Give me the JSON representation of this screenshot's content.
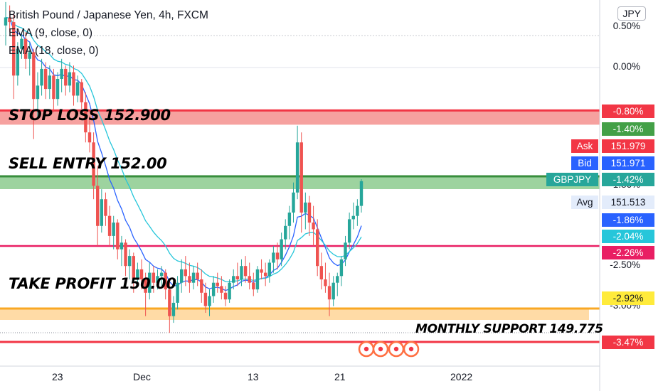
{
  "header": {
    "title": "British Pound / Japanese Yen, 4h, FXCM",
    "indicators": [
      "EMA (9, close, 0)",
      "EMA (18, close, 0)"
    ],
    "currency_button": "JPY"
  },
  "annotations": {
    "stop_loss": "STOP LOSS 152.900",
    "sell_entry": "SELL ENTRY 152.00",
    "take_profit": "TAKE PROFIT 150.00",
    "monthly_support": "MONTHLY SUPPORT 149.775"
  },
  "price_tags": {
    "ask_label": "Ask",
    "ask_value": "151.979",
    "bid_label": "Bid",
    "bid_value": "151.971",
    "symbol_label": "GBPJPY",
    "symbol_value": "-1.42%",
    "avg_label": "Avg",
    "avg_value": "151.513",
    "pct_080": "-0.80%",
    "pct_140": "-1.40%",
    "pct_186": "-1.86%",
    "pct_204": "-2.04%",
    "pct_226": "-2.26%",
    "pct_292": "-2.92%",
    "pct_347": "-3.47%"
  },
  "colors": {
    "up": "#26a69a",
    "down": "#ef5350",
    "ema_fast": "#2962ff",
    "ema_slow": "#26c6da",
    "stop_loss_zone": "#ef5350",
    "sell_entry_zone": "#4caf50",
    "take_profit_zone": "#f9a825",
    "line_pink": "#e91e63",
    "line_red": "#f23645"
  },
  "chart_data": {
    "type": "candlestick",
    "title": "British Pound / Japanese Yen, 4h, FXCM",
    "y_axis": {
      "type": "percent",
      "tick_labels": [
        "0.50%",
        "0.00%",
        "-1.86%",
        "-2.50%",
        "-3.00%"
      ],
      "range_percent": [
        -3.9,
        0.7
      ]
    },
    "x_axis": {
      "tick_labels": [
        "23",
        "Dec",
        "13",
        "21",
        "2022"
      ]
    },
    "levels": [
      {
        "name": "STOP LOSS 152.900",
        "price": 152.9
      },
      {
        "name": "SELL ENTRY 152.00",
        "price": 152.0
      },
      {
        "name": "TAKE PROFIT 150.00",
        "price": 150.0
      },
      {
        "name": "MONTHLY SUPPORT 149.775",
        "price": 149.775
      }
    ],
    "series": [
      {
        "name": "EMA (9, close, 0)"
      },
      {
        "name": "EMA (18, close, 0)"
      }
    ],
    "candles": [
      {
        "o": 154.3,
        "h": 154.65,
        "l": 154.0,
        "c": 154.42
      },
      {
        "o": 154.42,
        "h": 154.6,
        "l": 154.2,
        "c": 154.35
      },
      {
        "o": 154.35,
        "h": 154.48,
        "l": 153.2,
        "c": 153.55
      },
      {
        "o": 153.55,
        "h": 154.05,
        "l": 153.4,
        "c": 153.95
      },
      {
        "o": 153.95,
        "h": 154.2,
        "l": 153.8,
        "c": 154.1
      },
      {
        "o": 154.1,
        "h": 154.2,
        "l": 153.65,
        "c": 153.8
      },
      {
        "o": 153.8,
        "h": 154.05,
        "l": 153.55,
        "c": 153.9
      },
      {
        "o": 153.9,
        "h": 153.95,
        "l": 152.6,
        "c": 153.2
      },
      {
        "o": 153.2,
        "h": 153.6,
        "l": 152.9,
        "c": 153.4
      },
      {
        "o": 153.4,
        "h": 153.8,
        "l": 153.25,
        "c": 153.65
      },
      {
        "o": 153.65,
        "h": 153.75,
        "l": 153.2,
        "c": 153.35
      },
      {
        "o": 153.35,
        "h": 153.7,
        "l": 153.2,
        "c": 153.55
      },
      {
        "o": 153.55,
        "h": 153.65,
        "l": 153.0,
        "c": 153.2
      },
      {
        "o": 153.2,
        "h": 153.6,
        "l": 153.1,
        "c": 153.5
      },
      {
        "o": 153.5,
        "h": 153.8,
        "l": 153.3,
        "c": 153.65
      },
      {
        "o": 153.65,
        "h": 153.7,
        "l": 153.25,
        "c": 153.4
      },
      {
        "o": 153.4,
        "h": 153.75,
        "l": 153.3,
        "c": 153.6
      },
      {
        "o": 153.6,
        "h": 153.7,
        "l": 153.1,
        "c": 153.25
      },
      {
        "o": 153.25,
        "h": 153.55,
        "l": 153.15,
        "c": 153.45
      },
      {
        "o": 153.45,
        "h": 153.5,
        "l": 153.05,
        "c": 153.15
      },
      {
        "o": 153.15,
        "h": 153.3,
        "l": 152.55,
        "c": 152.7
      },
      {
        "o": 152.7,
        "h": 152.95,
        "l": 152.4,
        "c": 152.55
      },
      {
        "o": 152.55,
        "h": 152.7,
        "l": 151.7,
        "c": 151.9
      },
      {
        "o": 151.9,
        "h": 152.2,
        "l": 151.0,
        "c": 151.3
      },
      {
        "o": 151.3,
        "h": 151.85,
        "l": 151.2,
        "c": 151.7
      },
      {
        "o": 151.7,
        "h": 151.8,
        "l": 151.3,
        "c": 151.45
      },
      {
        "o": 151.45,
        "h": 151.6,
        "l": 151.0,
        "c": 151.15
      },
      {
        "o": 151.15,
        "h": 151.45,
        "l": 150.95,
        "c": 151.35
      },
      {
        "o": 151.35,
        "h": 151.4,
        "l": 150.8,
        "c": 150.95
      },
      {
        "o": 150.95,
        "h": 151.15,
        "l": 150.7,
        "c": 151.05
      },
      {
        "o": 151.05,
        "h": 151.1,
        "l": 150.55,
        "c": 150.7
      },
      {
        "o": 150.7,
        "h": 150.95,
        "l": 150.5,
        "c": 150.85
      },
      {
        "o": 150.85,
        "h": 150.9,
        "l": 150.3,
        "c": 150.5
      },
      {
        "o": 150.5,
        "h": 150.75,
        "l": 150.4,
        "c": 150.65
      },
      {
        "o": 150.65,
        "h": 150.8,
        "l": 150.35,
        "c": 150.5
      },
      {
        "o": 150.5,
        "h": 150.6,
        "l": 149.95,
        "c": 150.3
      },
      {
        "o": 150.3,
        "h": 150.75,
        "l": 150.2,
        "c": 150.6
      },
      {
        "o": 150.6,
        "h": 150.7,
        "l": 150.3,
        "c": 150.45
      },
      {
        "o": 150.45,
        "h": 150.65,
        "l": 150.35,
        "c": 150.55
      },
      {
        "o": 150.55,
        "h": 150.7,
        "l": 150.4,
        "c": 150.6
      },
      {
        "o": 150.6,
        "h": 150.65,
        "l": 150.2,
        "c": 150.35
      },
      {
        "o": 150.35,
        "h": 150.5,
        "l": 149.7,
        "c": 149.95
      },
      {
        "o": 149.95,
        "h": 150.25,
        "l": 149.85,
        "c": 150.15
      },
      {
        "o": 150.15,
        "h": 150.55,
        "l": 150.05,
        "c": 150.45
      },
      {
        "o": 150.45,
        "h": 150.8,
        "l": 150.3,
        "c": 150.65
      },
      {
        "o": 150.65,
        "h": 150.85,
        "l": 150.4,
        "c": 150.55
      },
      {
        "o": 150.55,
        "h": 150.75,
        "l": 150.3,
        "c": 150.45
      },
      {
        "o": 150.45,
        "h": 150.7,
        "l": 150.35,
        "c": 150.6
      },
      {
        "o": 150.6,
        "h": 150.75,
        "l": 150.4,
        "c": 150.5
      },
      {
        "o": 150.5,
        "h": 150.65,
        "l": 150.15,
        "c": 150.3
      },
      {
        "o": 150.3,
        "h": 150.45,
        "l": 150.0,
        "c": 150.1
      },
      {
        "o": 150.1,
        "h": 150.35,
        "l": 149.95,
        "c": 150.25
      },
      {
        "o": 150.25,
        "h": 150.55,
        "l": 150.15,
        "c": 150.45
      },
      {
        "o": 150.45,
        "h": 150.6,
        "l": 150.3,
        "c": 150.4
      },
      {
        "o": 150.4,
        "h": 150.55,
        "l": 150.2,
        "c": 150.3
      },
      {
        "o": 150.3,
        "h": 150.4,
        "l": 150.1,
        "c": 150.2
      },
      {
        "o": 150.2,
        "h": 150.5,
        "l": 150.15,
        "c": 150.45
      },
      {
        "o": 150.45,
        "h": 150.65,
        "l": 150.35,
        "c": 150.55
      },
      {
        "o": 150.55,
        "h": 150.75,
        "l": 150.4,
        "c": 150.5
      },
      {
        "o": 150.5,
        "h": 150.8,
        "l": 150.4,
        "c": 150.7
      },
      {
        "o": 150.7,
        "h": 150.85,
        "l": 150.45,
        "c": 150.55
      },
      {
        "o": 150.55,
        "h": 150.75,
        "l": 150.35,
        "c": 150.45
      },
      {
        "o": 150.45,
        "h": 150.6,
        "l": 150.25,
        "c": 150.35
      },
      {
        "o": 150.35,
        "h": 150.7,
        "l": 150.3,
        "c": 150.65
      },
      {
        "o": 150.65,
        "h": 150.8,
        "l": 150.5,
        "c": 150.6
      },
      {
        "o": 150.6,
        "h": 150.75,
        "l": 150.4,
        "c": 150.55
      },
      {
        "o": 150.55,
        "h": 150.8,
        "l": 150.45,
        "c": 150.75
      },
      {
        "o": 150.75,
        "h": 151.0,
        "l": 150.6,
        "c": 150.9
      },
      {
        "o": 150.9,
        "h": 151.05,
        "l": 150.65,
        "c": 150.8
      },
      {
        "o": 150.8,
        "h": 151.2,
        "l": 150.7,
        "c": 151.1
      },
      {
        "o": 151.1,
        "h": 151.4,
        "l": 150.95,
        "c": 151.3
      },
      {
        "o": 151.3,
        "h": 151.6,
        "l": 151.1,
        "c": 151.5
      },
      {
        "o": 151.5,
        "h": 151.95,
        "l": 151.35,
        "c": 151.8
      },
      {
        "o": 151.8,
        "h": 152.8,
        "l": 151.7,
        "c": 152.55
      },
      {
        "o": 152.55,
        "h": 152.7,
        "l": 151.2,
        "c": 151.5
      },
      {
        "o": 151.5,
        "h": 151.8,
        "l": 151.25,
        "c": 151.65
      },
      {
        "o": 151.65,
        "h": 151.75,
        "l": 151.15,
        "c": 151.35
      },
      {
        "o": 151.35,
        "h": 151.6,
        "l": 151.0,
        "c": 151.25
      },
      {
        "o": 151.25,
        "h": 151.4,
        "l": 150.55,
        "c": 150.7
      },
      {
        "o": 150.7,
        "h": 150.9,
        "l": 150.35,
        "c": 150.5
      },
      {
        "o": 150.5,
        "h": 150.75,
        "l": 150.3,
        "c": 150.4
      },
      {
        "o": 150.4,
        "h": 150.6,
        "l": 149.95,
        "c": 150.2
      },
      {
        "o": 150.2,
        "h": 150.55,
        "l": 150.1,
        "c": 150.45
      },
      {
        "o": 150.45,
        "h": 150.6,
        "l": 150.25,
        "c": 150.55
      },
      {
        "o": 150.55,
        "h": 150.85,
        "l": 150.4,
        "c": 150.8
      },
      {
        "o": 150.8,
        "h": 151.15,
        "l": 150.7,
        "c": 151.05
      },
      {
        "o": 151.05,
        "h": 151.5,
        "l": 150.95,
        "c": 151.4
      },
      {
        "o": 151.4,
        "h": 151.65,
        "l": 151.25,
        "c": 151.45
      },
      {
        "o": 151.45,
        "h": 151.7,
        "l": 151.3,
        "c": 151.6
      },
      {
        "o": 151.6,
        "h": 152.0,
        "l": 151.5,
        "c": 151.97
      }
    ]
  }
}
